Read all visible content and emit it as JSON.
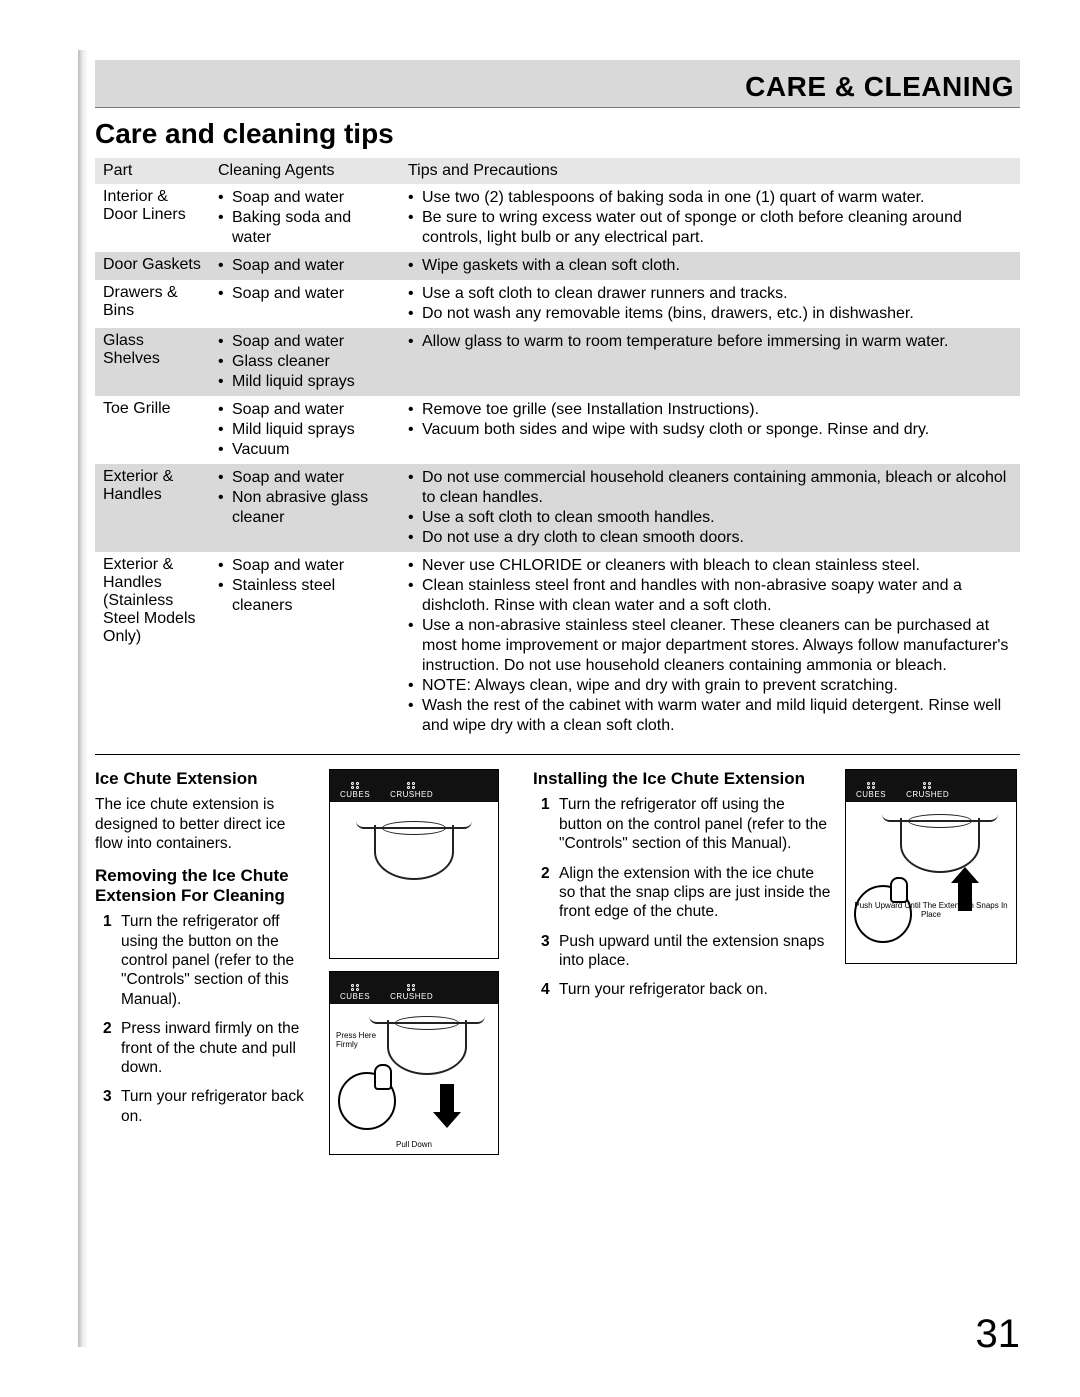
{
  "header": {
    "title": "CARE & CLEANING"
  },
  "section_title": "Care and cleaning tips",
  "page_number": "31",
  "table": {
    "headers": [
      "Part",
      "Cleaning Agents",
      "Tips and Precautions"
    ],
    "rows": [
      {
        "alt": false,
        "part": "Interior & Door Liners",
        "agents": [
          "Soap and water",
          "Baking soda and water"
        ],
        "tips": [
          "Use two (2) tablespoons of baking soda in one (1) quart of warm water.",
          "Be sure to wring excess water out of sponge or cloth before cleaning around controls, light bulb or any electrical part."
        ]
      },
      {
        "alt": true,
        "part": "Door Gaskets",
        "agents": [
          "Soap and water"
        ],
        "tips": [
          "Wipe gaskets with a clean soft cloth."
        ]
      },
      {
        "alt": false,
        "part": "Drawers & Bins",
        "agents": [
          "Soap and water"
        ],
        "tips": [
          "Use a soft cloth to clean drawer runners and tracks.",
          "Do not wash any removable items (bins, drawers, etc.) in dishwasher."
        ]
      },
      {
        "alt": true,
        "part": "Glass Shelves",
        "agents": [
          "Soap and water",
          "Glass cleaner",
          "Mild liquid sprays"
        ],
        "tips": [
          "Allow glass to warm to room temperature before immersing in warm water."
        ]
      },
      {
        "alt": false,
        "part": "Toe Grille",
        "agents": [
          "Soap and water",
          "Mild liquid sprays",
          "Vacuum"
        ],
        "tips": [
          "Remove toe grille (see Installation Instructions).",
          "Vacuum both sides and wipe with sudsy cloth or sponge.  Rinse and dry."
        ]
      },
      {
        "alt": true,
        "part": "Exterior & Handles",
        "agents": [
          "Soap and water",
          "Non abrasive glass cleaner"
        ],
        "tips": [
          "Do not use commercial household cleaners containing ammonia, bleach or alcohol to clean handles.",
          "Use a soft cloth to clean smooth handles.",
          "Do not use a dry cloth to clean smooth doors."
        ]
      },
      {
        "alt": false,
        "part": "Exterior & Handles (Stainless Steel Models Only)",
        "agents": [
          "Soap and water",
          "Stainless steel cleaners"
        ],
        "tips": [
          "Never use CHLORIDE or cleaners with bleach to clean stainless steel.",
          "Clean stainless steel front and handles with non-abrasive soapy water and a dishcloth. Rinse with clean water and a soft cloth.",
          "Use a non-abrasive stainless steel cleaner. These cleaners can be purchased at most home improvement or major department stores. Always follow manufacturer's instruction. Do not use household cleaners containing ammonia or bleach.",
          "NOTE: Always clean, wipe and dry with grain to prevent scratching.",
          "Wash the rest of the cabinet with warm water and mild liquid detergent. Rinse well and wipe dry with a clean soft cloth."
        ]
      }
    ]
  },
  "ice_chute": {
    "title": "Ice Chute Extension",
    "intro": "The ice chute extension is designed to better direct ice flow into containers.",
    "removing_title": "Removing the Ice Chute Extension For Cleaning",
    "removing_steps": [
      "Turn the refrigerator off using the button on the control panel (refer to the \"Controls\" section of this Manual).",
      "Press inward firmly on the front of the chute and pull down.",
      "Turn your refrigerator back on."
    ],
    "installing_title": "Installing the Ice Chute Extension",
    "installing_steps": [
      "Turn the refrigerator off using the button on the control panel (refer to the \"Controls\" section of this Manual).",
      "Align the extension with the ice chute so that the snap clips are just inside the front edge of the chute.",
      "Push upward until the extension snaps into place.",
      "Turn your refrigerator back on."
    ],
    "fig_labels": {
      "cubes": "CUBES",
      "crushed": "CRUSHED",
      "press_here": "Press Here Firmly",
      "pull_down": "Pull Down",
      "push_up": "Push Upward Until The Extension Snaps In Place"
    }
  }
}
